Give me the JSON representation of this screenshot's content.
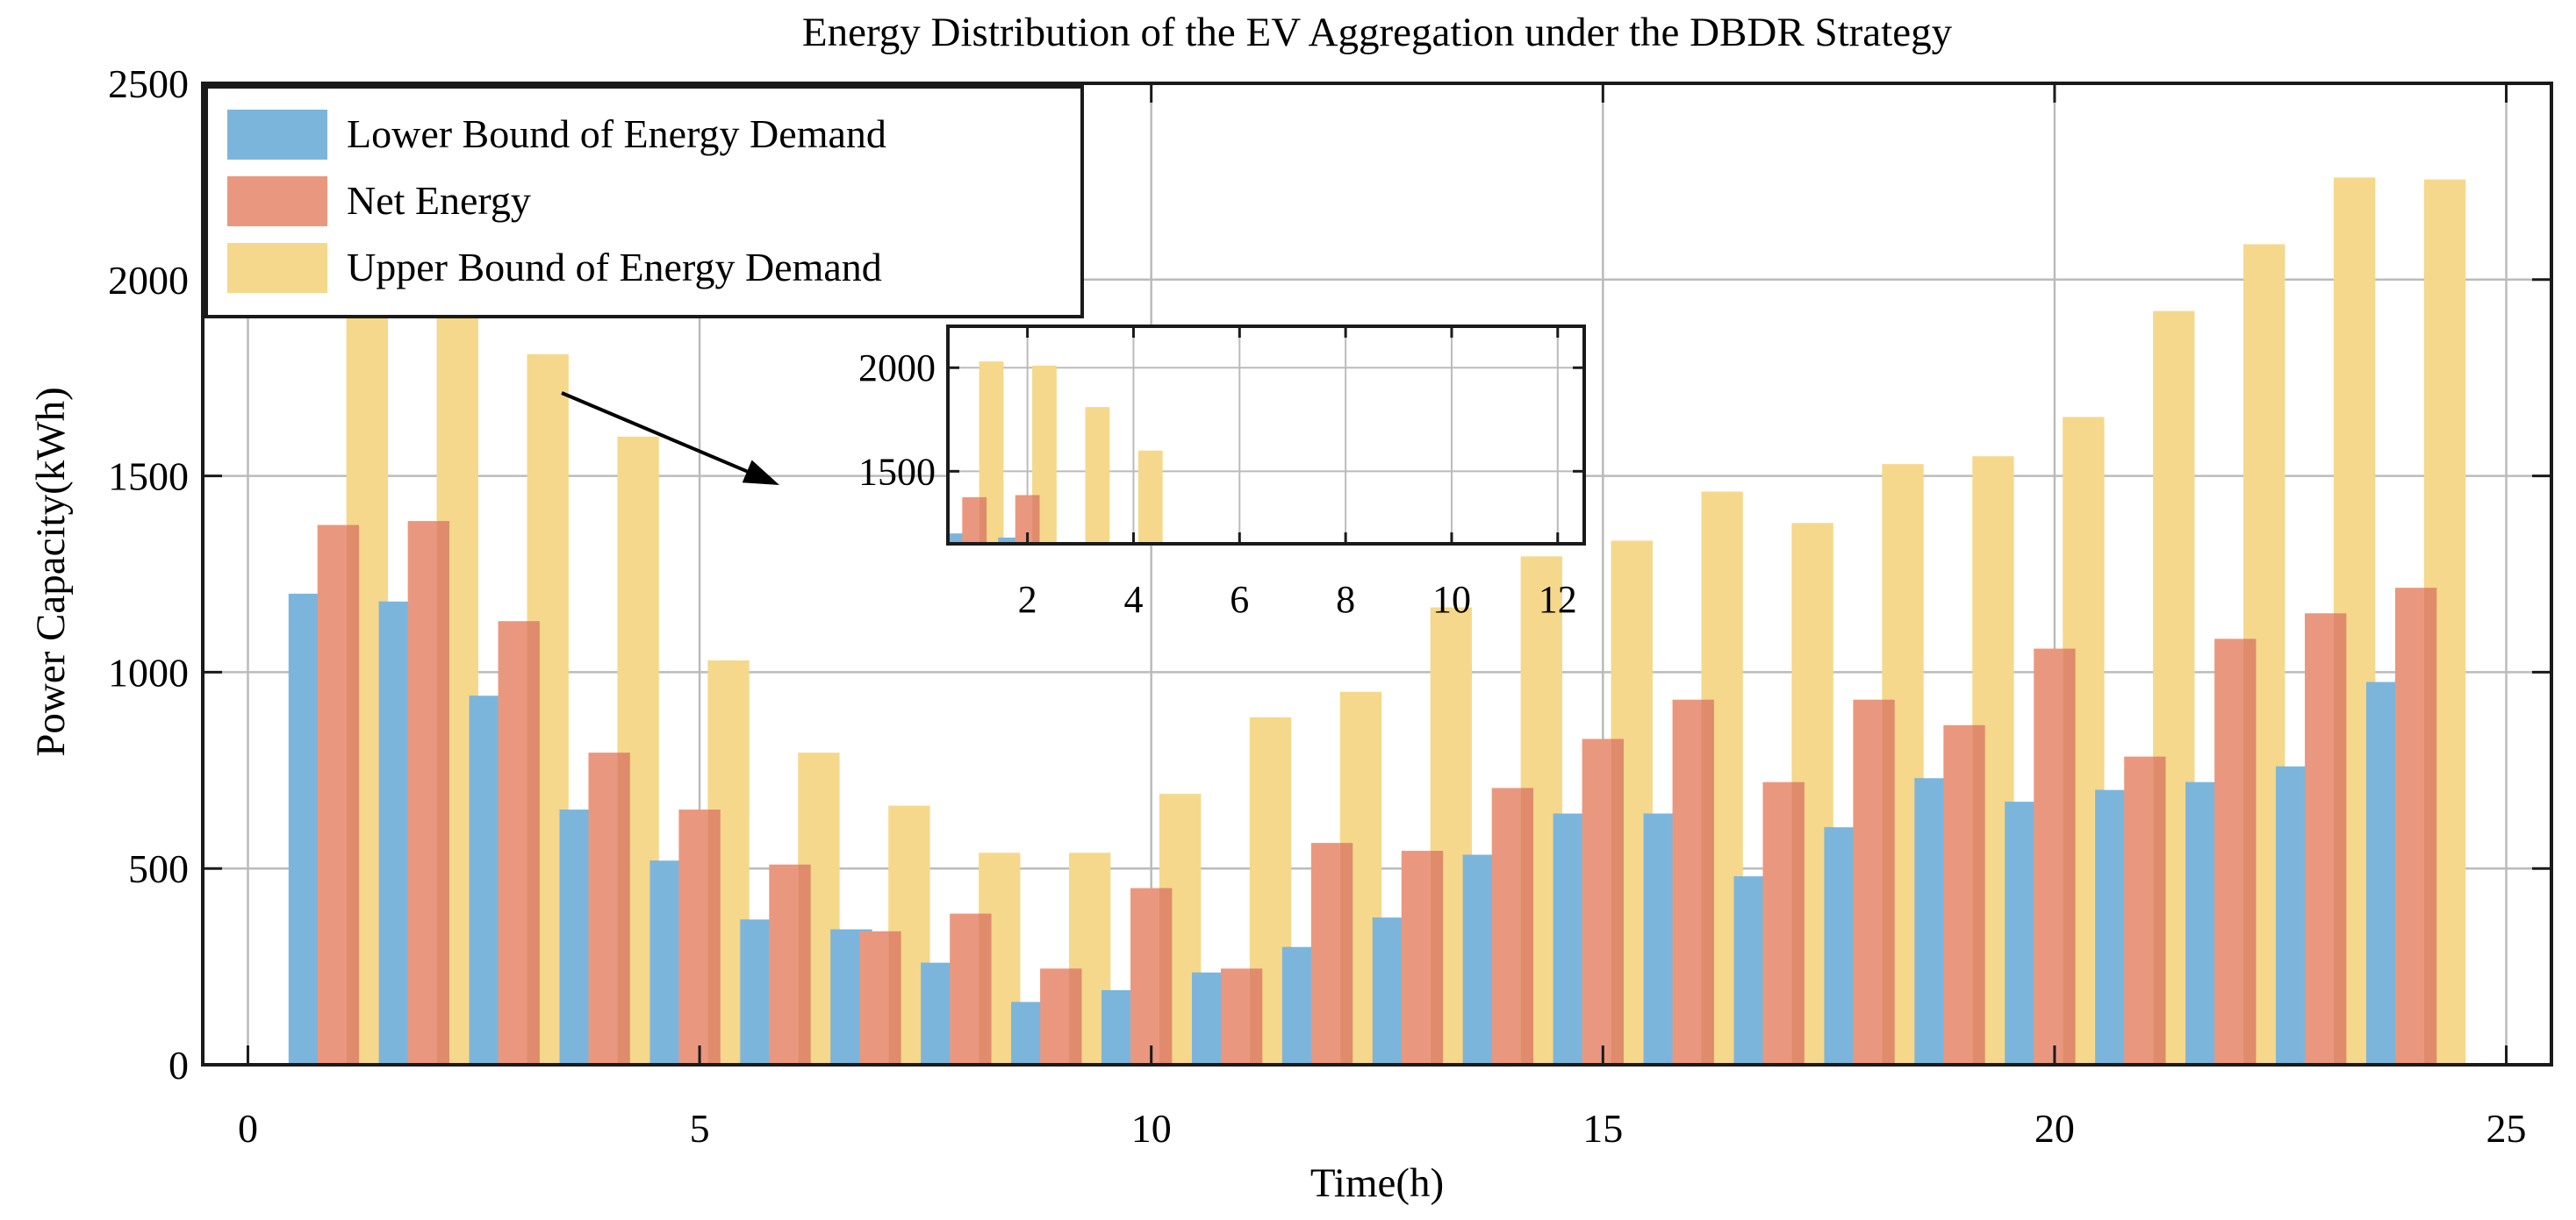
{
  "title": "Energy Distribution of the EV Aggregation under the DBDR Strategy",
  "axes": {
    "x_label": "Time(h)",
    "y_label": "Power Capacity(kWh)",
    "x_ticks": [
      0,
      5,
      10,
      15,
      20,
      25
    ],
    "y_ticks": [
      0,
      500,
      1000,
      1500,
      2000,
      2500
    ],
    "xlim": [
      -0.5,
      25.5
    ],
    "ylim": [
      0,
      2500
    ],
    "grid": true
  },
  "legend": {
    "position": "top-left",
    "items": [
      {
        "label": "Lower Bound of Energy Demand",
        "color": "#7CB5DC"
      },
      {
        "label": "Net Energy",
        "color": "#E9987F"
      },
      {
        "label": "Upper Bound of Energy Demand",
        "color": "#F5D88B"
      }
    ]
  },
  "colors": {
    "lower_bound": "#7CB5DC",
    "net_energy": "#E9987F",
    "upper_bound": "#F5D88B",
    "overlap_yellow_blue": "#A9AD6B",
    "overlap_orange_yellow": "#E08B6C",
    "gridline": "#bbbbbb",
    "axis": "#1a1a1a"
  },
  "chart_data": [
    {
      "name": "main",
      "type": "bar",
      "title": "Energy Distribution of the EV Aggregation under the DBDR Strategy",
      "xlabel": "Time(h)",
      "ylabel": "Power Capacity(kWh)",
      "xlim": [
        -0.5,
        25.5
      ],
      "ylim": [
        0,
        2500
      ],
      "x": [
        1,
        2,
        3,
        4,
        5,
        6,
        7,
        8,
        9,
        10,
        11,
        12,
        13,
        14,
        15,
        16,
        17,
        18,
        19,
        20,
        21,
        22,
        23,
        24
      ],
      "series": [
        {
          "name": "Lower Bound of Energy Demand",
          "color": "#7CB5DC",
          "values": [
            1200,
            1180,
            940,
            650,
            520,
            370,
            345,
            260,
            160,
            190,
            235,
            300,
            375,
            535,
            640,
            640,
            480,
            605,
            730,
            670,
            700,
            720,
            760,
            975
          ]
        },
        {
          "name": "Net Energy",
          "color": "#E9987F",
          "values": [
            1375,
            1385,
            1130,
            795,
            650,
            510,
            340,
            385,
            245,
            450,
            245,
            565,
            545,
            705,
            830,
            930,
            720,
            930,
            865,
            1060,
            785,
            1085,
            1150,
            1215
          ]
        },
        {
          "name": "Upper Bound of Energy Demand",
          "color": "#F5D88B",
          "values": [
            2030,
            2010,
            1810,
            1600,
            1030,
            795,
            660,
            540,
            540,
            690,
            885,
            950,
            1165,
            1295,
            1335,
            1460,
            1380,
            1530,
            1550,
            1650,
            1920,
            2090,
            2260,
            2255
          ]
        }
      ],
      "legend_position": "top-left",
      "grid": true
    },
    {
      "name": "inset-zoom",
      "type": "bar",
      "xlim": [
        0.5,
        12.5
      ],
      "ylim": [
        1150,
        2200
      ],
      "x_ticks": [
        2,
        4,
        6,
        8,
        10,
        12
      ],
      "y_ticks": [
        1500,
        2000
      ],
      "x": [
        1,
        2,
        3,
        4,
        5,
        6,
        7,
        8,
        9,
        10,
        11,
        12
      ],
      "series": [
        {
          "name": "Lower Bound of Energy Demand",
          "color": "#7CB5DC",
          "values": [
            1200,
            1180,
            940,
            650,
            520,
            370,
            345,
            260,
            160,
            190,
            235,
            300
          ]
        },
        {
          "name": "Net Energy",
          "color": "#E9987F",
          "values": [
            1375,
            1385,
            1130,
            795,
            650,
            510,
            340,
            385,
            245,
            450,
            245,
            565
          ]
        },
        {
          "name": "Upper Bound of Energy Demand",
          "color": "#F5D88B",
          "values": [
            2030,
            2010,
            1810,
            1600,
            1030,
            795,
            660,
            540,
            540,
            690,
            885,
            950
          ]
        }
      ],
      "grid": true
    }
  ],
  "annotation_arrow": {
    "from_x": 640,
    "from_y": 448,
    "to_x": 888,
    "to_y": 553
  }
}
